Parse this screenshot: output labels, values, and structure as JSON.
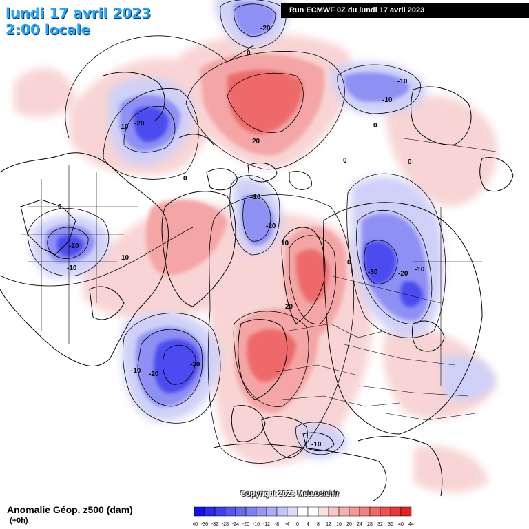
{
  "header": {
    "date": "lundi 17 avril 2023",
    "time": "2:00 locale",
    "run": "Run ECMWF 0Z du lundi 17 avril 2023"
  },
  "footer": {
    "title": "Anomalie Géop. z500 (dam)",
    "lead": "(+0h)",
    "copyright": "Copyright 2023 Meteociel.fr"
  },
  "legend": {
    "values": [
      "-40",
      "-36",
      "-32",
      "-28",
      "-24",
      "-20",
      "-16",
      "-12",
      "-8",
      "-4",
      "0",
      "4",
      "8",
      "12",
      "16",
      "20",
      "24",
      "28",
      "32",
      "36",
      "40",
      "44"
    ],
    "colors": [
      "#1010f0",
      "#2a2af0",
      "#3f3ff0",
      "#5555f0",
      "#6a6af0",
      "#8080f2",
      "#9797f4",
      "#adadf6",
      "#c4c4f8",
      "#dcdcfb",
      "#ffffff",
      "#ffffff",
      "#fbe0e0",
      "#f8c8c8",
      "#f6b0b0",
      "#f49898",
      "#f28080",
      "#f06868",
      "#ee5050",
      "#ec3838",
      "#ea2020",
      "#e80808"
    ]
  },
  "map": {
    "contour_labels": [
      "-20",
      "0",
      "-10",
      "-20",
      "0",
      "-10",
      "-10",
      "0",
      "20",
      "0",
      "-10",
      "-20",
      "10",
      "0",
      "-20",
      "10",
      "-10",
      "-30",
      "-20",
      "-10",
      "20",
      "-10",
      "-20",
      "-30",
      "-10"
    ],
    "colors": {
      "negative_strong": "#4a4af0",
      "negative_mid": "#8a8af4",
      "negative_weak": "#c8c8f8",
      "positive_weak": "#f8d0d0",
      "positive_mid": "#f4a0a0",
      "positive_strong": "#ee6060",
      "coast": "#000000"
    }
  }
}
